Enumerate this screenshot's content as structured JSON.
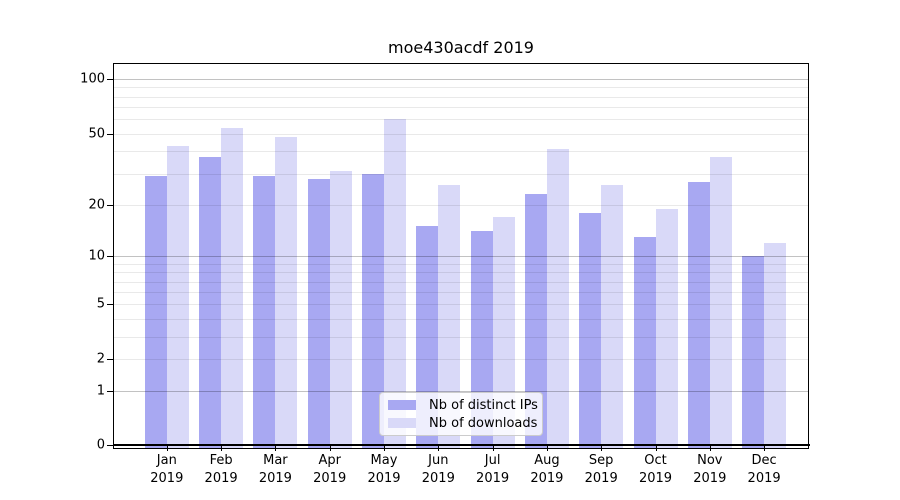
{
  "chart_data": {
    "type": "bar",
    "title": "moe430acdf 2019",
    "categories": [
      "Jan",
      "Feb",
      "Mar",
      "Apr",
      "May",
      "Jun",
      "Jul",
      "Aug",
      "Sep",
      "Oct",
      "Nov",
      "Dec"
    ],
    "x_tick_second_line": "2019",
    "series": [
      {
        "name": "Nb of distinct IPs",
        "color": "#a8a8f2",
        "values": [
          29,
          37,
          29,
          28,
          30,
          15,
          14,
          23,
          18,
          13,
          27,
          10
        ]
      },
      {
        "name": "Nb of downloads",
        "color": "#d9d9f8",
        "values": [
          43,
          54,
          48,
          31,
          60,
          26,
          17,
          41,
          26,
          19,
          37,
          12
        ]
      }
    ],
    "xlabel": "",
    "ylabel": "",
    "yscale": "log1p",
    "ylim": [
      0,
      123
    ],
    "yticks": [
      0,
      1,
      2,
      5,
      10,
      20,
      50,
      100
    ],
    "ytick_labels": [
      "0",
      "1",
      "2",
      "5",
      "10",
      "20",
      "50",
      "100"
    ],
    "major_gridlines": [
      1,
      10,
      100
    ],
    "minor_gridlines": [
      2,
      3,
      4,
      5,
      6,
      7,
      8,
      9,
      20,
      30,
      40,
      50,
      60,
      70,
      80,
      90
    ],
    "grid": "on",
    "legend_position": "lower center"
  }
}
